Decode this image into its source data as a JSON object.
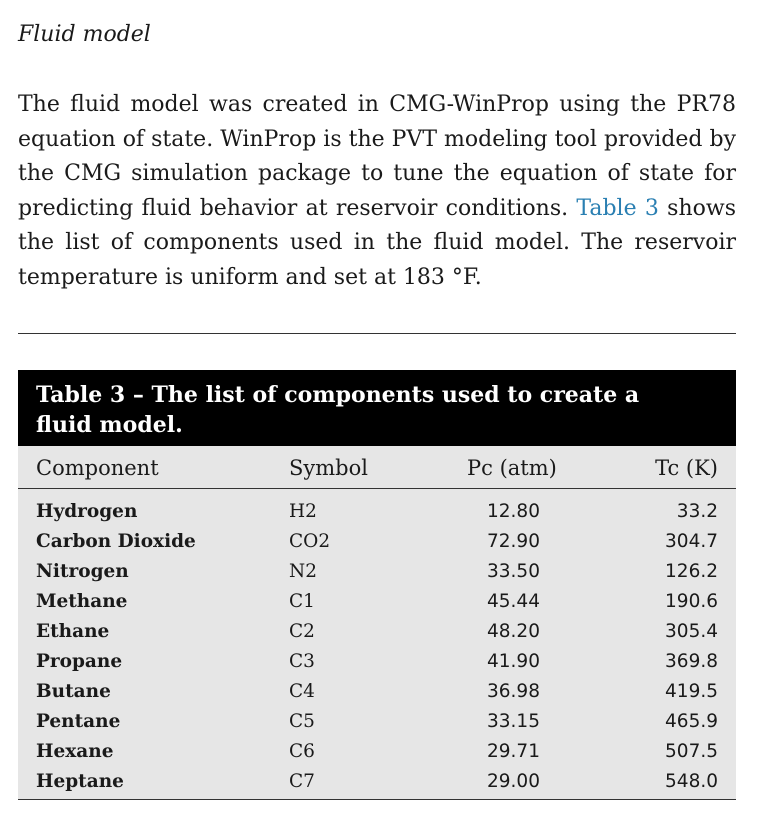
{
  "section": {
    "heading": "Fluid model",
    "paragraph_before_link": "The fluid model was created in CMG-WinProp using the PR78 equation of state. WinProp is the PVT modeling tool provided by the CMG simulation package to tune the equation of state for predicting fluid behavior at reservoir conditions. ",
    "link_text": "Table 3",
    "paragraph_after_link": " shows the list of components used in the fluid model. The reservoir temperature is uniform and set at 183 °F.",
    "link_color": "#2a7fb2"
  },
  "table": {
    "caption": "Table 3 – The list of components used to create a fluid model.",
    "headers": [
      "Component",
      "Symbol",
      "Pc (atm)",
      "Tc (K)"
    ],
    "rows": [
      [
        "Hydrogen",
        "H2",
        "12.80",
        "33.2"
      ],
      [
        "Carbon Dioxide",
        "CO2",
        "72.90",
        "304.7"
      ],
      [
        "Nitrogen",
        "N2",
        "33.50",
        "126.2"
      ],
      [
        "Methane",
        "C1",
        "45.44",
        "190.6"
      ],
      [
        "Ethane",
        "C2",
        "48.20",
        "305.4"
      ],
      [
        "Propane",
        "C3",
        "41.90",
        "369.8"
      ],
      [
        "Butane",
        "C4",
        "36.98",
        "419.5"
      ],
      [
        "Pentane",
        "C5",
        "33.15",
        "465.9"
      ],
      [
        "Hexane",
        "C6",
        "29.71",
        "507.5"
      ],
      [
        "Heptane",
        "C7",
        "29.00",
        "548.0"
      ]
    ],
    "caption_background": "#000000",
    "body_background": "#e6e6e6"
  }
}
